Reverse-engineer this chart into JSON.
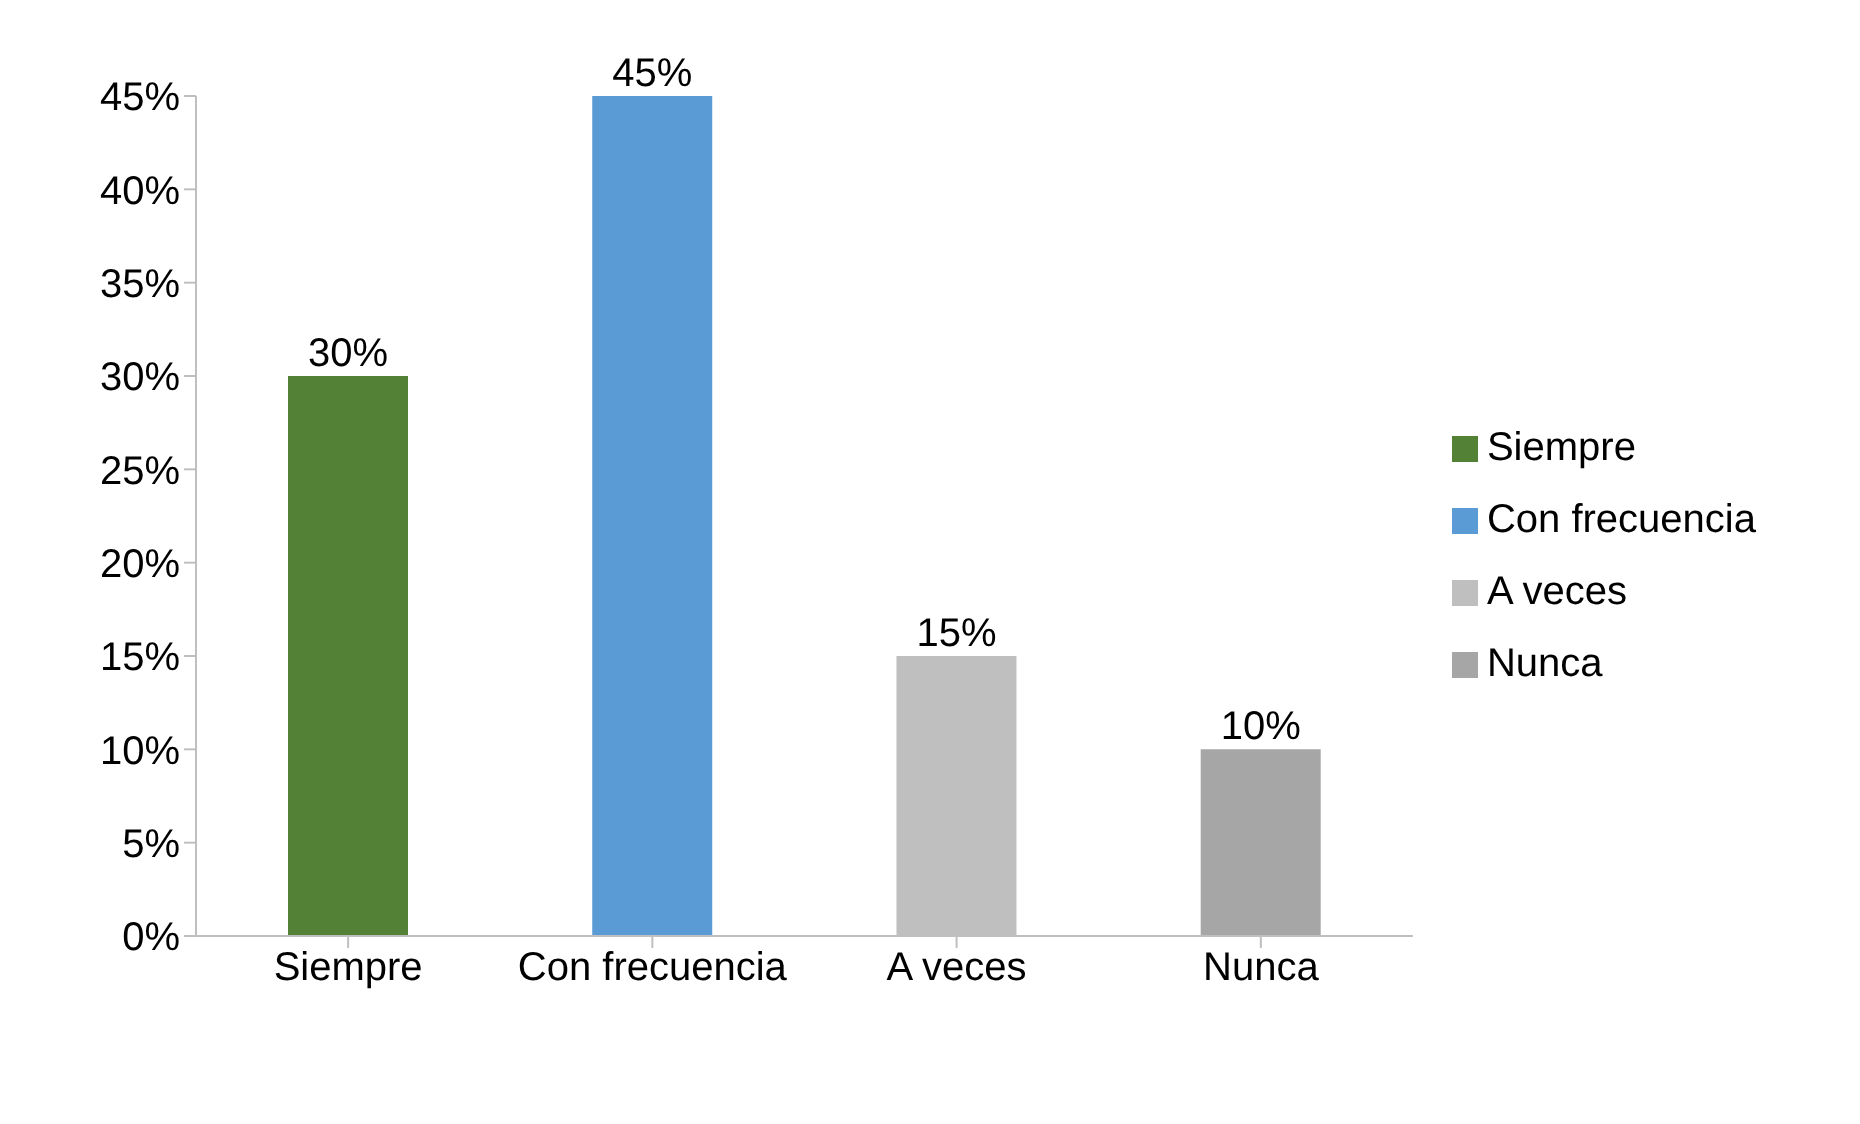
{
  "chart_data": {
    "type": "bar",
    "stacked": true,
    "categories": [
      "Siempre",
      "Con frecuencia",
      "A veces",
      "Nunca"
    ],
    "series": [
      {
        "name": "Siempre",
        "color": "#538135",
        "values": [
          30,
          null,
          null,
          null
        ],
        "value_labels": [
          "30%",
          null,
          null,
          null
        ]
      },
      {
        "name": "Con frecuencia",
        "color": "#5b9bd5",
        "values": [
          null,
          45,
          null,
          null
        ],
        "value_labels": [
          null,
          "45%",
          null,
          null
        ]
      },
      {
        "name": "A veces",
        "color": "#bfbfbf",
        "values": [
          null,
          null,
          15,
          null
        ],
        "value_labels": [
          null,
          null,
          "15%",
          null
        ]
      },
      {
        "name": "Nunca",
        "color": "#a6a6a6",
        "values": [
          null,
          null,
          null,
          10
        ],
        "value_labels": [
          null,
          null,
          null,
          "10%"
        ]
      }
    ],
    "ylim": [
      0,
      45
    ],
    "yticks": [
      {
        "value": 0,
        "label": "0%"
      },
      {
        "value": 5,
        "label": "5%"
      },
      {
        "value": 10,
        "label": "10%"
      },
      {
        "value": 15,
        "label": "15%"
      },
      {
        "value": 20,
        "label": "20%"
      },
      {
        "value": 25,
        "label": "25%"
      },
      {
        "value": 30,
        "label": "30%"
      },
      {
        "value": 35,
        "label": "35%"
      },
      {
        "value": 40,
        "label": "40%"
      },
      {
        "value": 45,
        "label": "45%"
      }
    ],
    "legend": "right"
  }
}
